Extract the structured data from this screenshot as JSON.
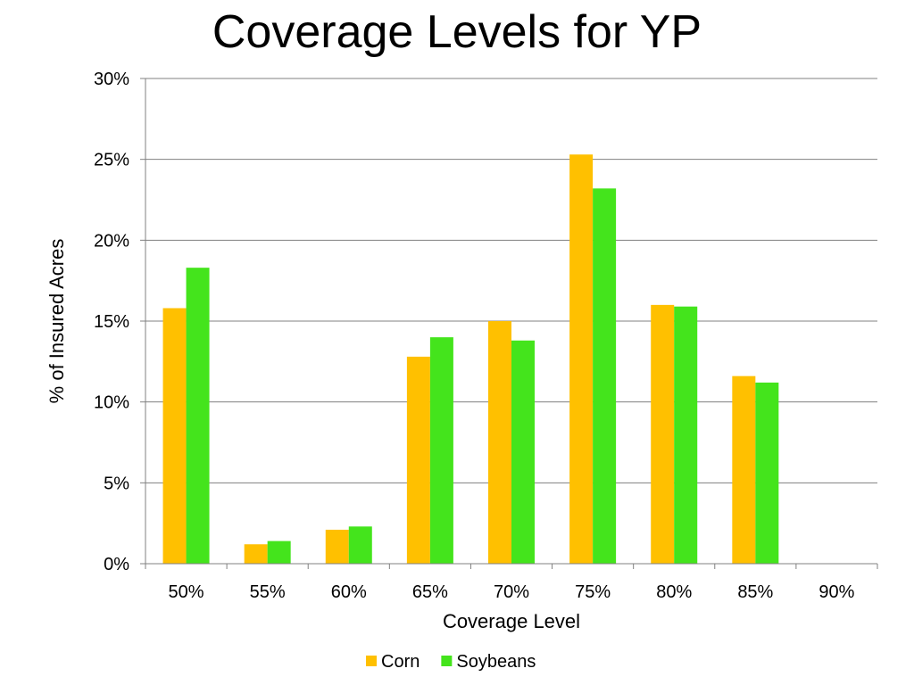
{
  "chart_data": {
    "type": "bar",
    "title": "Coverage Levels for YP",
    "xlabel": "Coverage Level",
    "ylabel": "% of Insured Acres",
    "categories": [
      "50%",
      "55%",
      "60%",
      "65%",
      "70%",
      "75%",
      "80%",
      "85%",
      "90%"
    ],
    "series": [
      {
        "name": "Corn",
        "color": "#FFC000",
        "values": [
          15.8,
          1.2,
          2.1,
          12.8,
          15.0,
          25.3,
          16.0,
          11.6,
          0
        ]
      },
      {
        "name": "Soybeans",
        "color": "#44E41C",
        "values": [
          18.3,
          1.4,
          2.3,
          14.0,
          13.8,
          23.2,
          15.9,
          11.2,
          0
        ]
      }
    ],
    "ylim": [
      0,
      30
    ],
    "yticks": [
      0,
      5,
      10,
      15,
      20,
      25,
      30
    ],
    "ytick_labels": [
      "0%",
      "5%",
      "10%",
      "15%",
      "20%",
      "25%",
      "30%"
    ],
    "grid": true,
    "legend_position": "bottom"
  }
}
